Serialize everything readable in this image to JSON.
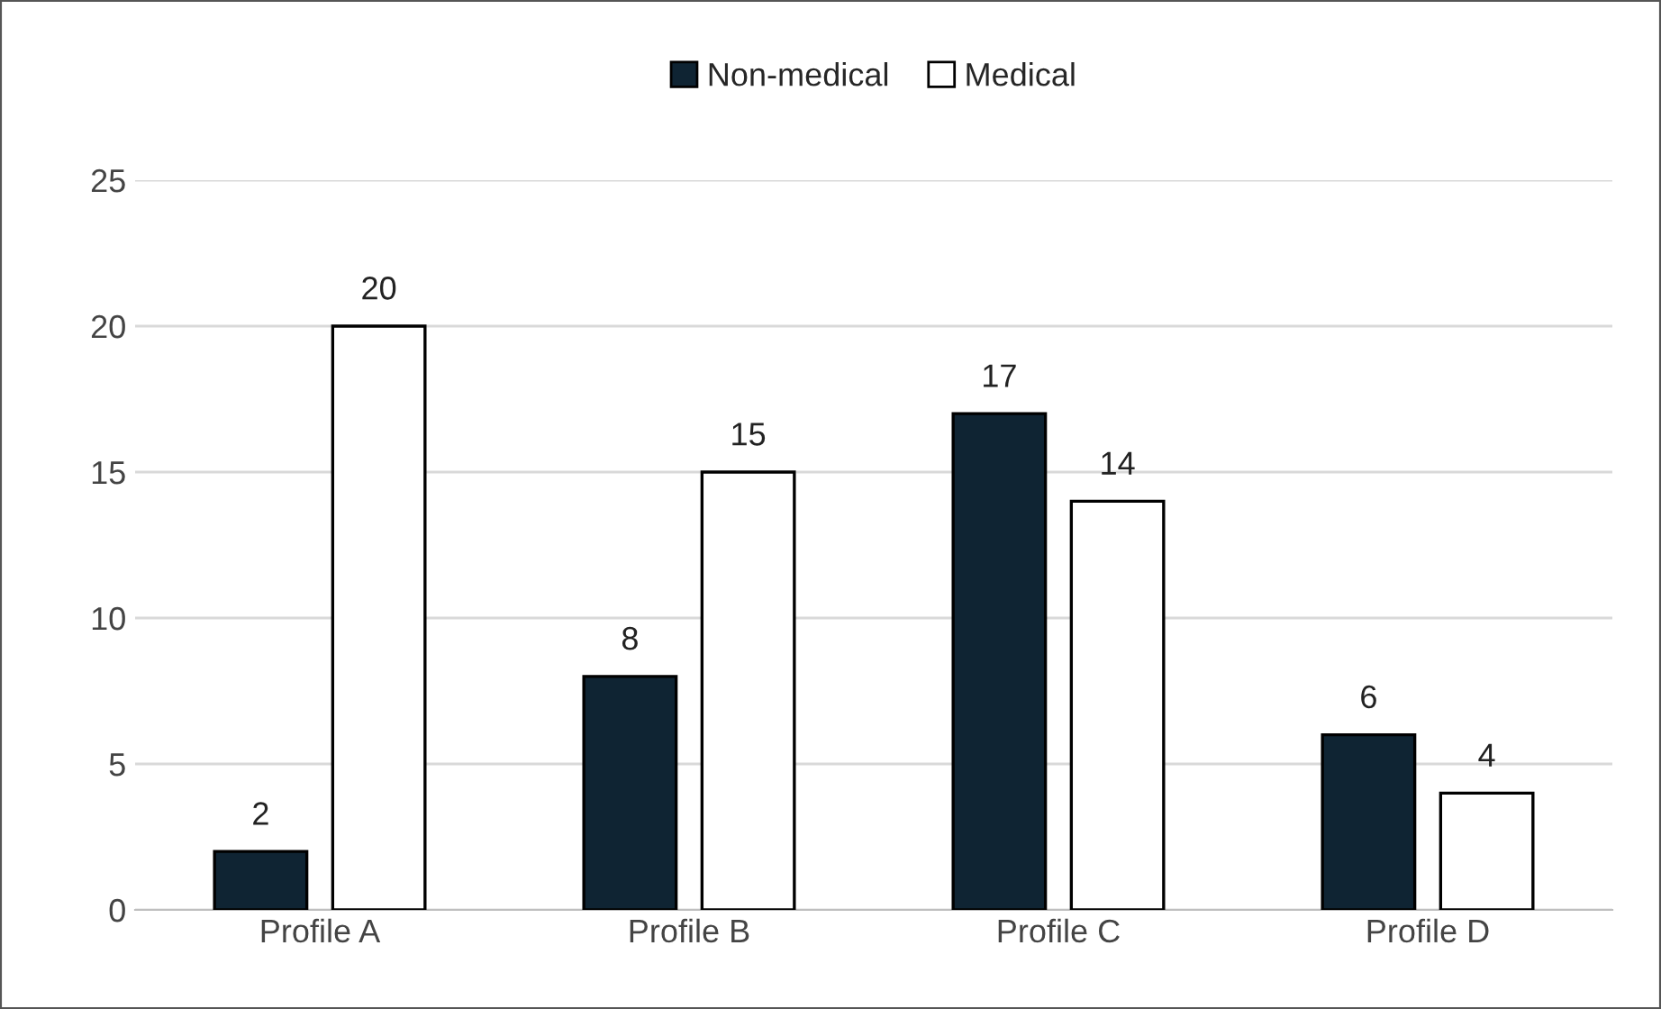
{
  "chart_data": {
    "type": "bar",
    "categories": [
      "Profile A",
      "Profile B",
      "Profile C",
      "Profile D"
    ],
    "series": [
      {
        "name": "Non-medical",
        "color": "#0f2433",
        "values": [
          2,
          8,
          17,
          6
        ]
      },
      {
        "name": "Medical",
        "color": "#ffffff",
        "values": [
          20,
          15,
          14,
          4
        ]
      }
    ],
    "ylim": [
      0,
      25
    ],
    "yticks": [
      0,
      5,
      10,
      15,
      20,
      25
    ],
    "grid": "y",
    "legend": "top",
    "data_labels": true
  }
}
